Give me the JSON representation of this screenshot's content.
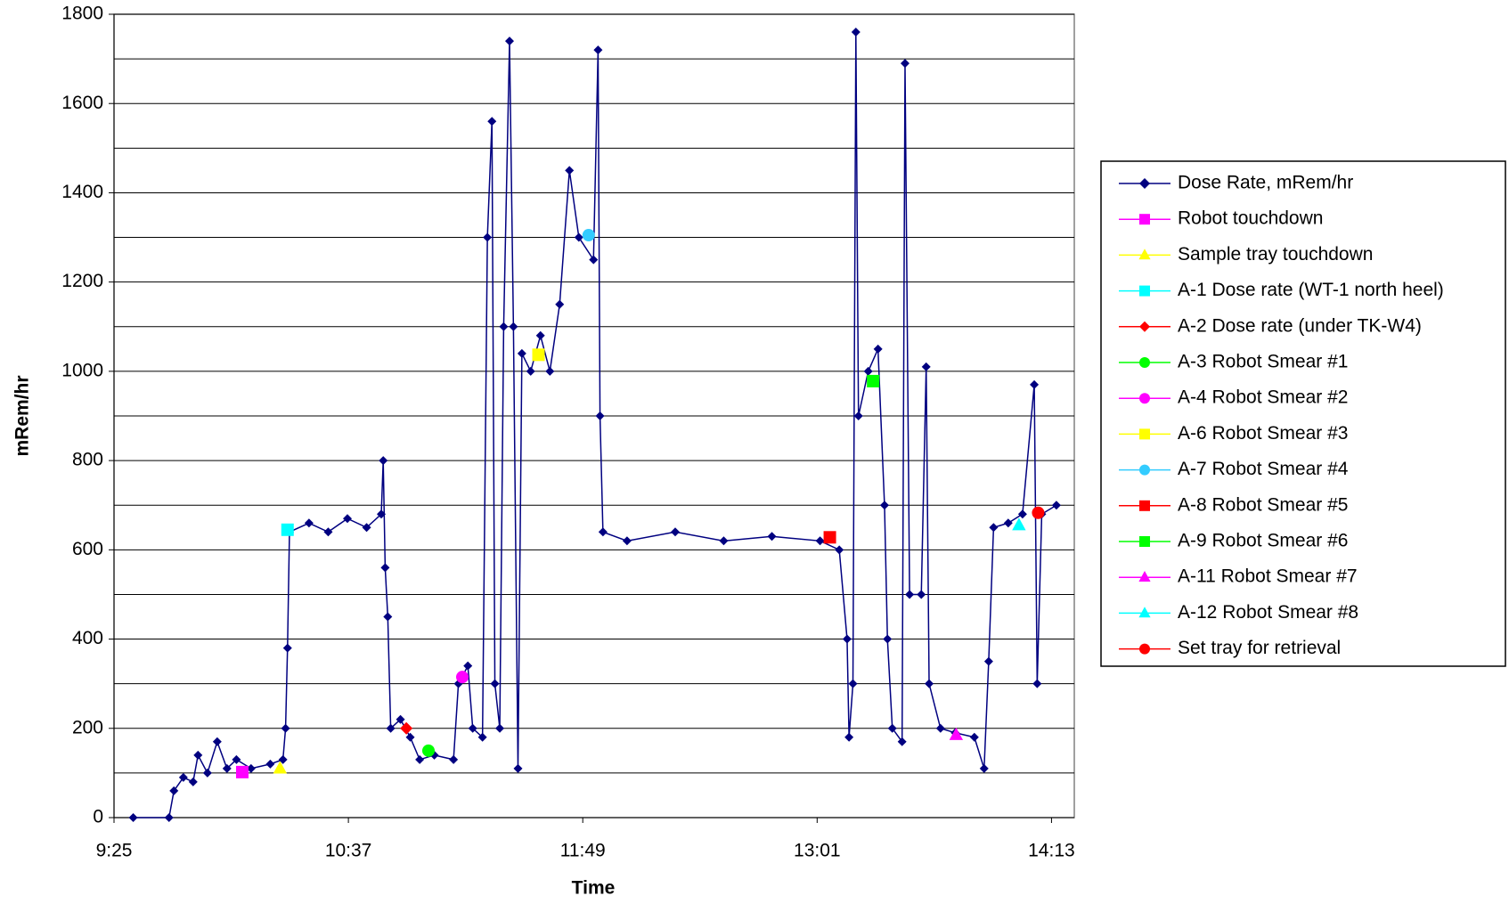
{
  "chart_data": {
    "type": "line",
    "xlabel": "Time",
    "ylabel": "mRem/hr",
    "xlim": [
      565,
      860
    ],
    "ylim": [
      0,
      1800
    ],
    "xticks": [
      {
        "value": 565,
        "label": "9:25"
      },
      {
        "value": 637,
        "label": "10:37"
      },
      {
        "value": 709,
        "label": "11:49"
      },
      {
        "value": 781,
        "label": "13:01"
      },
      {
        "value": 853,
        "label": "14:13"
      }
    ],
    "yticks": [
      0,
      200,
      400,
      600,
      800,
      1000,
      1200,
      1400,
      1600,
      1800
    ],
    "yminor": [
      100,
      300,
      500,
      700,
      900,
      1100,
      1300,
      1500,
      1700
    ],
    "grid": true,
    "legend": "right",
    "series": [
      {
        "name": "Dose Rate, mRem/hr",
        "color": "#000080",
        "marker": "diamond",
        "line": true,
        "x": [
          570.9,
          581.9,
          583.4,
          586.3,
          589.3,
          590.8,
          593.7,
          596.7,
          599.7,
          602.6,
          607.1,
          613,
          616.9,
          617.7,
          618.3,
          618.9,
          624.9,
          630.8,
          636.7,
          642.6,
          647.1,
          647.7,
          648.3,
          649.1,
          650,
          653,
          656,
          658.9,
          663.4,
          669.3,
          670.8,
          673.7,
          675.2,
          678.2,
          679.7,
          681.1,
          682,
          683.5,
          684.7,
          686.5,
          687.7,
          689.1,
          690.3,
          693,
          696,
          698.9,
          701.9,
          704.9,
          707.8,
          712.3,
          713.7,
          714.3,
          715.2,
          722.6,
          737.4,
          752.3,
          767.1,
          781.9,
          787.8,
          790.2,
          790.8,
          792,
          792.9,
          793.7,
          796.7,
          799.7,
          801.7,
          802.6,
          804.1,
          807.1,
          808,
          809.4,
          813,
          814.5,
          815.4,
          818.9,
          823.4,
          829.3,
          832.3,
          833.7,
          835.2,
          839.7,
          844.1,
          847.7,
          848.6,
          850,
          854.5
        ],
        "values": [
          0,
          0,
          60,
          90,
          80,
          140,
          100,
          170,
          110,
          130,
          110,
          120,
          130,
          200,
          380,
          640,
          660,
          640,
          670,
          650,
          680,
          800,
          560,
          450,
          200,
          220,
          180,
          130,
          140,
          130,
          300,
          340,
          200,
          180,
          1300,
          1560,
          300,
          200,
          1100,
          1740,
          1100,
          110,
          1040,
          1000,
          1080,
          1000,
          1150,
          1450,
          1300,
          1250,
          1720,
          900,
          640,
          620,
          640,
          620,
          630,
          620,
          600,
          400,
          180,
          300,
          1760,
          900,
          1000,
          1050,
          700,
          400,
          200,
          170,
          1690,
          500,
          500,
          1010,
          300,
          200,
          190,
          180,
          110,
          350,
          650,
          660,
          680,
          970,
          300,
          680,
          700
        ]
      },
      {
        "name": "Robot touchdown",
        "color": "#ff00ff",
        "marker": "square",
        "x": [
          604.4
        ],
        "values": [
          102
        ]
      },
      {
        "name": "Sample tray touchdown",
        "color": "#ffff00",
        "marker": "triangle",
        "x": [
          616
        ],
        "values": [
          110
        ]
      },
      {
        "name": "A-1 Dose rate (WT-1 north heel)",
        "color": "#00ffff",
        "marker": "square",
        "x": [
          618.3
        ],
        "values": [
          645
        ]
      },
      {
        "name": "A-2 Dose rate (under TK-W4)",
        "color": "#ff0000",
        "marker": "diamond",
        "x": [
          654.8
        ],
        "values": [
          200
        ]
      },
      {
        "name": "A-3 Robot Smear #1",
        "color": "#00ff00",
        "marker": "circle",
        "x": [
          661.6
        ],
        "values": [
          150
        ]
      },
      {
        "name": "A-4 Robot Smear #2",
        "color": "#ff00ff",
        "marker": "circle",
        "x": [
          672
        ],
        "values": [
          315
        ]
      },
      {
        "name": "A-6 Robot Smear #3",
        "color": "#ffff00",
        "marker": "square",
        "x": [
          695.4
        ],
        "values": [
          1037
        ]
      },
      {
        "name": "A-7 Robot Smear #4",
        "color": "#33ccff",
        "marker": "circle",
        "x": [
          710.8
        ],
        "values": [
          1305
        ]
      },
      {
        "name": "A-8 Robot Smear #5",
        "color": "#ff0000",
        "marker": "square",
        "x": [
          784.9
        ],
        "values": [
          628
        ]
      },
      {
        "name": "A-9 Robot Smear #6",
        "color": "#00ff00",
        "marker": "square",
        "x": [
          798.2
        ],
        "values": [
          978
        ]
      },
      {
        "name": "A-11 Robot Smear #7",
        "color": "#ff00ff",
        "marker": "triangle",
        "x": [
          823.7
        ],
        "values": [
          185
        ]
      },
      {
        "name": "A-12 Robot Smear #8",
        "color": "#00ffff",
        "marker": "triangle",
        "x": [
          843
        ],
        "values": [
          655
        ]
      },
      {
        "name": "Set tray for retrieval",
        "color": "#ff0000",
        "marker": "circle",
        "x": [
          848.9
        ],
        "values": [
          683
        ]
      }
    ]
  }
}
